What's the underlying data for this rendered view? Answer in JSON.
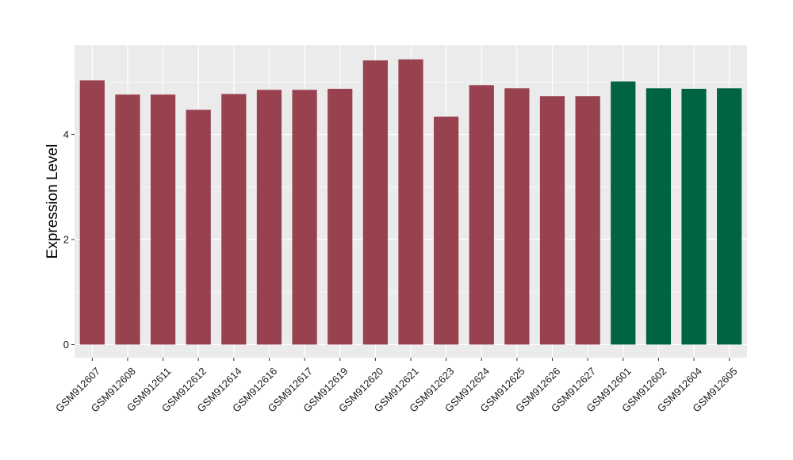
{
  "chart_data": {
    "type": "bar",
    "title": "",
    "xlabel": "",
    "ylabel": "Expression Level",
    "ylim": [
      -0.25,
      5.7
    ],
    "yticks": [
      0,
      2,
      4
    ],
    "grid": true,
    "legend": "none",
    "categories": [
      "GSM912607",
      "GSM912608",
      "GSM912611",
      "GSM912612",
      "GSM912614",
      "GSM912616",
      "GSM912617",
      "GSM912619",
      "GSM912620",
      "GSM912621",
      "GSM912623",
      "GSM912624",
      "GSM912625",
      "GSM912626",
      "GSM912627",
      "GSM912601",
      "GSM912602",
      "GSM912604",
      "GSM912605"
    ],
    "values": [
      5.03,
      4.76,
      4.76,
      4.47,
      4.77,
      4.85,
      4.85,
      4.87,
      5.41,
      5.43,
      4.34,
      4.94,
      4.88,
      4.73,
      4.73,
      5.01,
      4.88,
      4.87,
      4.88
    ],
    "groups": [
      0,
      0,
      0,
      0,
      0,
      0,
      0,
      0,
      0,
      0,
      0,
      0,
      0,
      0,
      0,
      1,
      1,
      1,
      1
    ],
    "group_colors": [
      "#99424f",
      "#006443"
    ],
    "panel_background": "#ebebeb",
    "gridline_color": "#ffffff"
  }
}
